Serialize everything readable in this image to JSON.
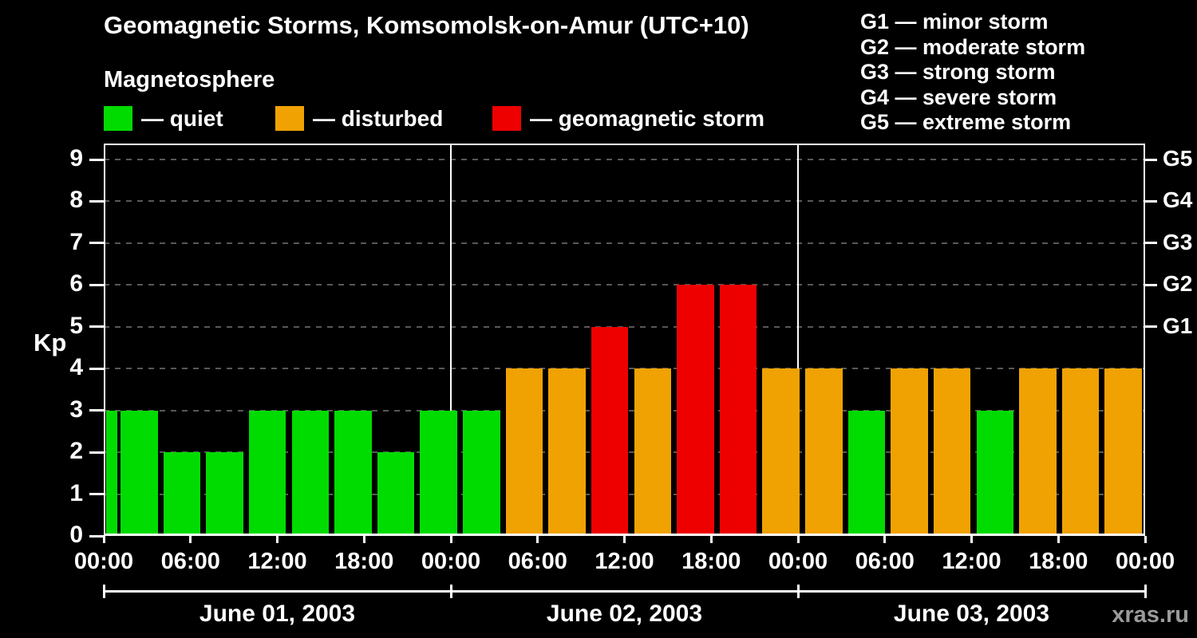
{
  "header": {
    "title": "Geomagnetic Storms, Komsomolsk-on-Amur (UTC+10)",
    "subtitle": "Magnetosphere",
    "legend": [
      {
        "key": "quiet",
        "color": "#00dc00",
        "label": "— quiet"
      },
      {
        "key": "disturbed",
        "color": "#f0a202",
        "label": "— disturbed"
      },
      {
        "key": "storm",
        "color": "#ee0000",
        "label": "— geomagnetic storm"
      }
    ],
    "g_scale": [
      "G1 — minor storm",
      "G2 — moderate storm",
      "G3 — strong storm",
      "G4 — severe storm",
      "G5 — extreme storm"
    ]
  },
  "watermark": "xras.ru",
  "chart_data": {
    "type": "bar",
    "title": "Geomagnetic Storms, Komsomolsk-on-Amur (UTC+10)",
    "subtitle": "Magnetosphere",
    "xlabel": "",
    "ylabel": "Kp",
    "ylim": [
      0,
      9.5
    ],
    "grid": "dashed horizontal lines at each integer Kp level",
    "grid_color": "#585858",
    "legend_position": "top-left",
    "y_ticks": [
      0,
      1,
      2,
      3,
      4,
      5,
      6,
      7,
      8,
      9
    ],
    "x_tick_labels": [
      "00:00",
      "06:00",
      "12:00",
      "18:00",
      "00:00",
      "06:00",
      "12:00",
      "18:00",
      "00:00",
      "06:00",
      "12:00",
      "18:00",
      "00:00"
    ],
    "right_axis_labels": [
      {
        "kp": 5,
        "label": "G1"
      },
      {
        "kp": 6,
        "label": "G2"
      },
      {
        "kp": 7,
        "label": "G3"
      },
      {
        "kp": 8,
        "label": "G4"
      },
      {
        "kp": 9,
        "label": "G5"
      }
    ],
    "colors": {
      "quiet": "#00dc00",
      "disturbed": "#f0a202",
      "storm": "#ee0000"
    },
    "color_rule": {
      "quiet_max": 3,
      "disturbed": 4,
      "storm_min": 5
    },
    "bar_interval_hours": 3,
    "leading_partial_kp": 3,
    "days": [
      {
        "date": "June 01, 2003",
        "kp_values": [
          3,
          2,
          2,
          3,
          3,
          3,
          2,
          3
        ]
      },
      {
        "date": "June 02, 2003",
        "kp_values": [
          3,
          4,
          4,
          5,
          4,
          6,
          6,
          4
        ]
      },
      {
        "date": "June 03, 2003",
        "kp_values": [
          4,
          3,
          4,
          4,
          3,
          4,
          4,
          4
        ]
      }
    ]
  }
}
